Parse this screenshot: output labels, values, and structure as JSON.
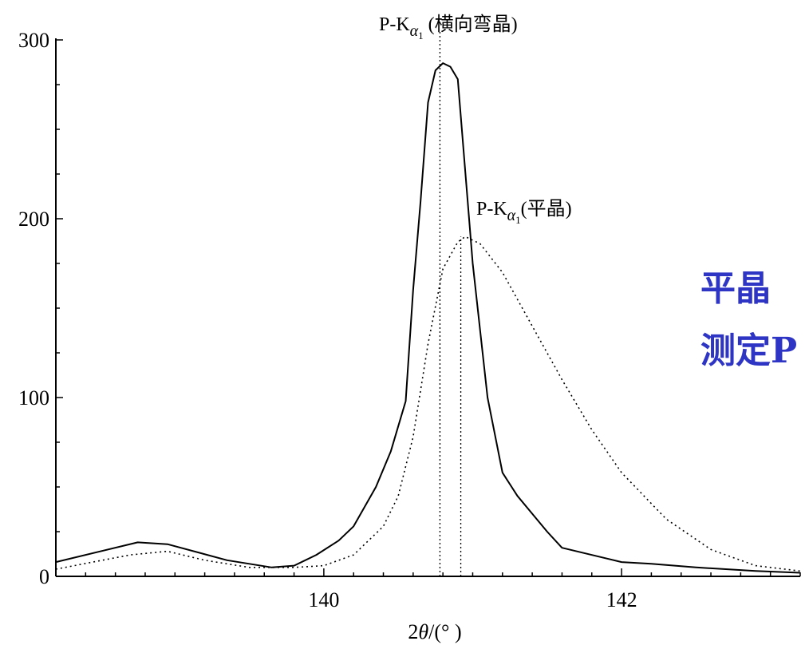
{
  "chart_data": {
    "type": "line",
    "xlabel": "2θ/(° )",
    "xlabel_parts": {
      "prefix": "2",
      "symbol": "θ",
      "suffix": "/(° )"
    },
    "xlim": [
      138.2,
      143.2
    ],
    "ylim": [
      0,
      300
    ],
    "x_ticks": [
      {
        "value": 140,
        "label": "140"
      },
      {
        "value": 142,
        "label": "142"
      }
    ],
    "y_ticks": [
      {
        "value": 0,
        "label": "0"
      },
      {
        "value": 100,
        "label": "100"
      },
      {
        "value": 200,
        "label": "200"
      },
      {
        "value": 300,
        "label": "300"
      }
    ],
    "grid": false,
    "series": [
      {
        "name": "P-Kα1 (横向弯晶)",
        "style": "solid",
        "x": [
          138.2,
          138.75,
          138.95,
          139.35,
          139.65,
          139.8,
          139.95,
          140.1,
          140.2,
          140.35,
          140.45,
          140.55,
          140.6,
          140.65,
          140.7,
          140.75,
          140.8,
          140.85,
          140.9,
          141.0,
          141.1,
          141.2,
          141.3,
          141.5,
          141.6,
          142.0,
          142.2,
          142.5,
          142.9,
          143.2
        ],
        "y": [
          8,
          19,
          18,
          9,
          5,
          6,
          12,
          20,
          28,
          50,
          70,
          98,
          160,
          210,
          265,
          283,
          287,
          285,
          278,
          175,
          100,
          58,
          45,
          25,
          16,
          8,
          7,
          5,
          3,
          2
        ]
      },
      {
        "name": "P-Kα1(平晶)",
        "style": "dotted",
        "x": [
          138.2,
          138.7,
          138.95,
          139.2,
          139.5,
          139.8,
          140.0,
          140.2,
          140.4,
          140.5,
          140.6,
          140.7,
          140.8,
          140.9,
          140.95,
          141.05,
          141.2,
          141.4,
          141.6,
          141.8,
          142.0,
          142.3,
          142.6,
          142.9,
          143.2
        ],
        "y": [
          4,
          12,
          14,
          9,
          5,
          5,
          6,
          12,
          28,
          45,
          78,
          130,
          172,
          187,
          190,
          186,
          170,
          140,
          110,
          82,
          58,
          32,
          15,
          6,
          3
        ]
      }
    ],
    "peak_markers": [
      {
        "series": 0,
        "x": 140.78
      },
      {
        "series": 1,
        "x": 140.92
      }
    ],
    "annotations": [
      {
        "series": 0,
        "prefix": "P-K",
        "sub1": "α",
        "sub2": "1",
        "suffix": " (横向弯晶)"
      },
      {
        "series": 1,
        "prefix": "P-K",
        "sub1": "α",
        "sub2": "1",
        "suffix": "(平晶)"
      }
    ],
    "line_color": "#000000"
  },
  "side_text": {
    "line1": "平晶",
    "line2": "测定P",
    "color": "#2e35c5"
  }
}
